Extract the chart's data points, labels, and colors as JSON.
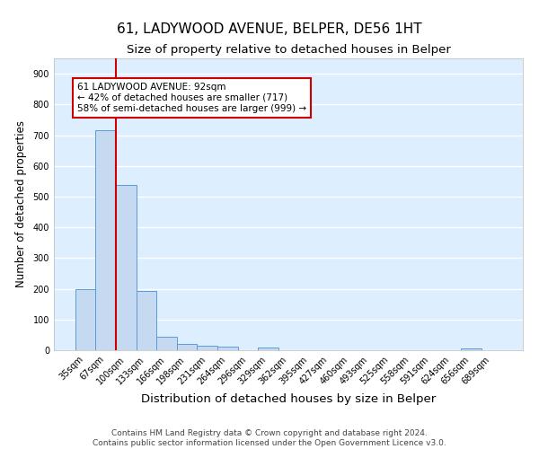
{
  "title": "61, LADYWOOD AVENUE, BELPER, DE56 1HT",
  "subtitle": "Size of property relative to detached houses in Belper",
  "xlabel": "Distribution of detached houses by size in Belper",
  "ylabel": "Number of detached properties",
  "bins": [
    "35sqm",
    "67sqm",
    "100sqm",
    "133sqm",
    "166sqm",
    "198sqm",
    "231sqm",
    "264sqm",
    "296sqm",
    "329sqm",
    "362sqm",
    "395sqm",
    "427sqm",
    "460sqm",
    "493sqm",
    "525sqm",
    "558sqm",
    "591sqm",
    "624sqm",
    "656sqm",
    "689sqm"
  ],
  "values": [
    200,
    717,
    537,
    192,
    45,
    20,
    14,
    12,
    0,
    8,
    0,
    0,
    0,
    0,
    0,
    0,
    0,
    0,
    0,
    5,
    0
  ],
  "bar_color": "#c5d9f0",
  "bar_edge_color": "#5b9bd5",
  "vline_color": "#cc0000",
  "vline_x": 1.5,
  "annotation_text": "61 LADYWOOD AVENUE: 92sqm\n← 42% of detached houses are smaller (717)\n58% of semi-detached houses are larger (999) →",
  "annotation_box_edge": "#cc0000",
  "ylim": [
    0,
    950
  ],
  "yticks": [
    0,
    100,
    200,
    300,
    400,
    500,
    600,
    700,
    800,
    900
  ],
  "background_color": "#ddeeff",
  "grid_color": "white",
  "footer": "Contains HM Land Registry data © Crown copyright and database right 2024.\nContains public sector information licensed under the Open Government Licence v3.0.",
  "title_fontsize": 11,
  "subtitle_fontsize": 9.5,
  "xlabel_fontsize": 9.5,
  "ylabel_fontsize": 8.5,
  "tick_fontsize": 7,
  "annot_fontsize": 7.5,
  "footer_fontsize": 6.5
}
